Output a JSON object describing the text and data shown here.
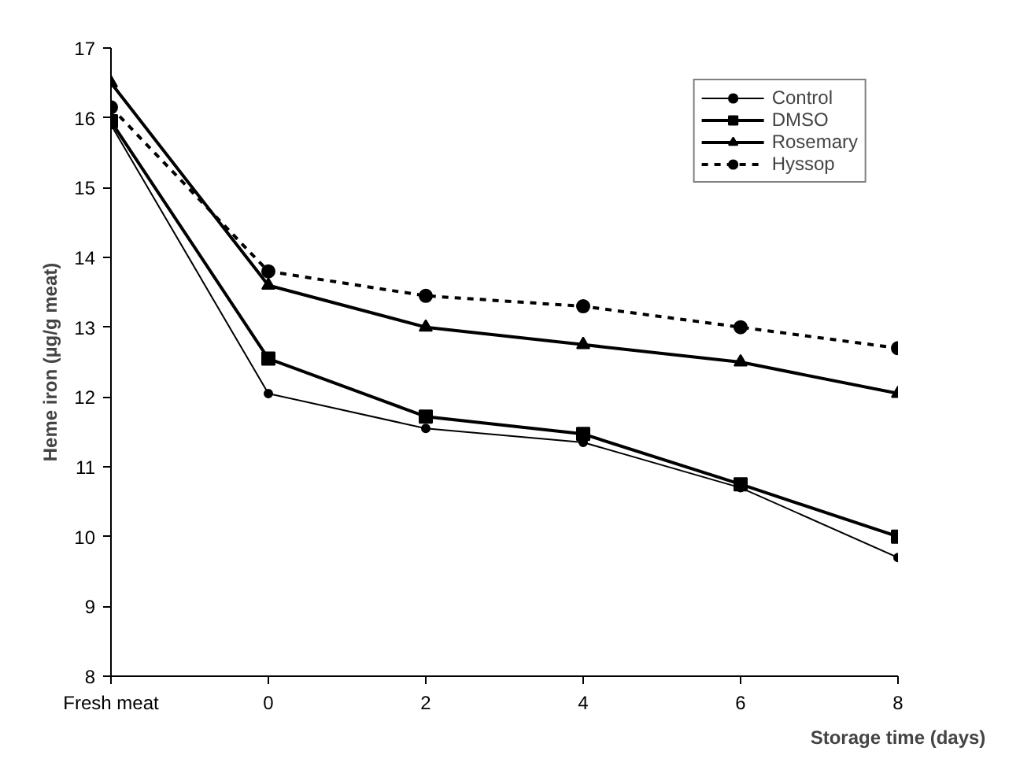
{
  "chart_data": {
    "type": "line",
    "xlabel": "Storage time (days)",
    "ylabel": "Heme iron (µg/g meat)",
    "categories": [
      "Fresh meat",
      "0",
      "2",
      "4",
      "6",
      "8"
    ],
    "ylim": [
      8,
      17
    ],
    "yticks": [
      8,
      9,
      10,
      11,
      12,
      13,
      14,
      15,
      16,
      17
    ],
    "grid": false,
    "legend": "top right",
    "series": [
      {
        "name": "Control",
        "color": "#000000",
        "marker": "circle",
        "line_style": "solid",
        "values": [
          15.9,
          12.05,
          11.55,
          11.35,
          10.7,
          9.7
        ]
      },
      {
        "name": "DMSO",
        "color": "#000000",
        "marker": "square",
        "line_style": "solid",
        "values": [
          15.95,
          12.55,
          11.72,
          11.47,
          10.75,
          10.0
        ]
      },
      {
        "name": "Rosemary",
        "color": "#000000",
        "marker": "triangle",
        "line_style": "solid",
        "values": [
          16.5,
          13.6,
          13.0,
          12.75,
          12.5,
          12.05
        ]
      },
      {
        "name": "Hyssop",
        "color": "#000000",
        "marker": "circle",
        "line_style": "dashed",
        "values": [
          16.15,
          13.8,
          13.45,
          13.3,
          13.0,
          12.7
        ]
      }
    ]
  }
}
